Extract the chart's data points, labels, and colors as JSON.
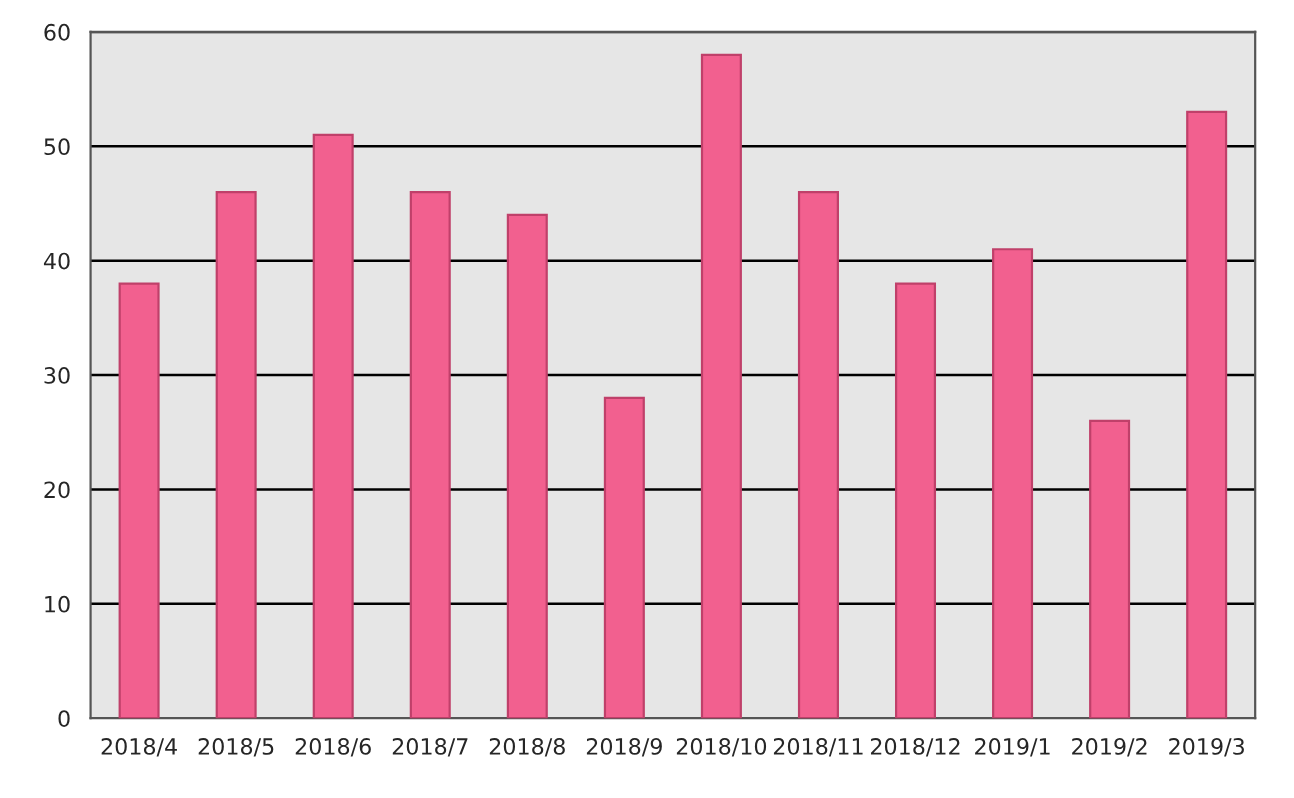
{
  "chart_data": {
    "type": "bar",
    "categories": [
      "2018/4",
      "2018/5",
      "2018/6",
      "2018/7",
      "2018/8",
      "2018/9",
      "2018/10",
      "2018/11",
      "2018/12",
      "2019/1",
      "2019/2",
      "2019/3"
    ],
    "values": [
      38,
      46,
      51,
      46,
      44,
      28,
      58,
      46,
      38,
      41,
      26,
      53
    ],
    "color": "#f2608f",
    "ylim": [
      0,
      60
    ],
    "yticks": [
      0,
      10,
      20,
      30,
      40,
      50,
      60
    ],
    "grid": "y"
  }
}
